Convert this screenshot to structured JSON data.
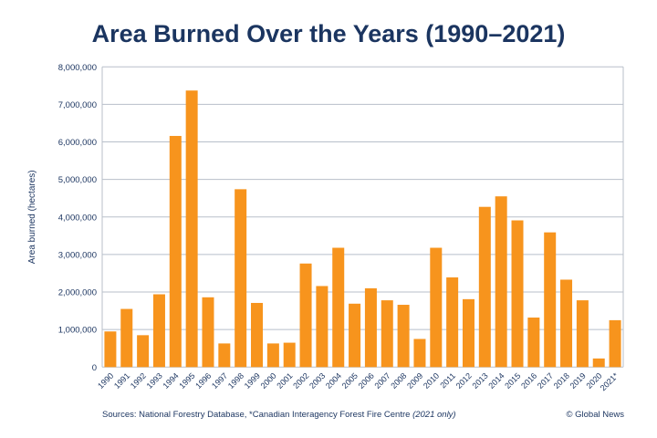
{
  "chart_data": {
    "type": "bar",
    "title": "Area Burned Over the Years (1990–2021)",
    "xlabel": "",
    "ylabel": "Area burned (hectares)",
    "ylim": [
      0,
      8000000
    ],
    "yticks": [
      0,
      1000000,
      2000000,
      3000000,
      4000000,
      5000000,
      6000000,
      7000000,
      8000000
    ],
    "ytick_labels": [
      "0",
      "1,000,000",
      "2,000,000",
      "3,000,000",
      "4,000,000",
      "5,000,000",
      "6,000,000",
      "7,000,000",
      "8,000,000"
    ],
    "grid": true,
    "categories": [
      "1990",
      "1991",
      "1992",
      "1993",
      "1994",
      "1995",
      "1996",
      "1997",
      "1998",
      "1999",
      "2000",
      "2001",
      "2002",
      "2003",
      "2004",
      "2005",
      "2006",
      "2007",
      "2008",
      "2009",
      "2010",
      "2011",
      "2012",
      "2013",
      "2014",
      "2015",
      "2016",
      "2017",
      "2018",
      "2019",
      "2020",
      "2021*"
    ],
    "values": [
      950000,
      1550000,
      850000,
      1940000,
      6160000,
      7370000,
      1860000,
      630000,
      4740000,
      1710000,
      630000,
      650000,
      2760000,
      2160000,
      3180000,
      1690000,
      2100000,
      1780000,
      1660000,
      750000,
      3180000,
      2390000,
      1810000,
      4270000,
      4550000,
      3910000,
      1320000,
      3590000,
      2330000,
      1780000,
      230000,
      1250000
    ],
    "bar_color": "#f7941d",
    "grid_color": "#b8bfca"
  },
  "footer": {
    "sources_prefix": "Sources: National Forestry Database, *Canadian Interagency Forest Fire Centre ",
    "sources_note": "(2021 only)",
    "credit": "© Global News"
  }
}
